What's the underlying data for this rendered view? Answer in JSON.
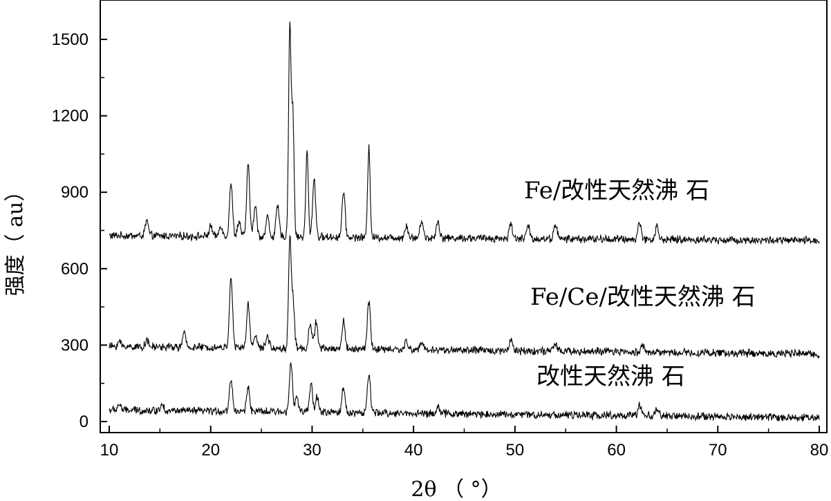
{
  "chart_data": {
    "type": "line",
    "title": "",
    "xlabel": "2θ （ °）",
    "ylabel": "强度（ au）",
    "xlim": [
      10,
      80
    ],
    "ylim": [
      -40,
      1640
    ],
    "x_ticks": [
      "10",
      "20",
      "30",
      "40",
      "50",
      "60",
      "70",
      "80"
    ],
    "y_ticks": [
      "0",
      "300",
      "600",
      "900",
      "1200",
      "1500"
    ],
    "grid": false,
    "legend": "inline labels beside each trace",
    "line_color": "#000000",
    "series": [
      {
        "name": "Fe/改性天然沸 石",
        "baseline": 730,
        "end_level": 710,
        "peaks": [
          [
            13.7,
            60
          ],
          [
            20.0,
            40
          ],
          [
            21.0,
            45
          ],
          [
            22.0,
            210
          ],
          [
            22.8,
            60
          ],
          [
            23.7,
            280
          ],
          [
            24.4,
            120
          ],
          [
            25.6,
            80
          ],
          [
            26.6,
            120
          ],
          [
            27.8,
            830
          ],
          [
            28.1,
            480
          ],
          [
            29.5,
            340
          ],
          [
            30.2,
            230
          ],
          [
            33.1,
            180
          ],
          [
            35.6,
            360
          ],
          [
            39.3,
            50
          ],
          [
            40.8,
            70
          ],
          [
            42.4,
            70
          ],
          [
            49.6,
            60
          ],
          [
            51.3,
            50
          ],
          [
            54.0,
            60
          ],
          [
            62.3,
            70
          ],
          [
            64.0,
            50
          ]
        ]
      },
      {
        "name": "Fe/Ce/改性天然沸 石",
        "baseline": 295,
        "end_level": 265,
        "peaks": [
          [
            11.0,
            20
          ],
          [
            13.7,
            25
          ],
          [
            17.4,
            55
          ],
          [
            22.0,
            280
          ],
          [
            23.7,
            170
          ],
          [
            24.4,
            55
          ],
          [
            25.6,
            50
          ],
          [
            27.8,
            420
          ],
          [
            28.1,
            200
          ],
          [
            29.8,
            100
          ],
          [
            30.4,
            110
          ],
          [
            33.1,
            110
          ],
          [
            35.6,
            190
          ],
          [
            39.3,
            30
          ],
          [
            40.8,
            30
          ],
          [
            49.6,
            50
          ],
          [
            54.0,
            30
          ],
          [
            62.6,
            30
          ]
        ]
      },
      {
        "name": "改性天然沸 石",
        "baseline": 45,
        "end_level": 15,
        "peaks": [
          [
            11.0,
            25
          ],
          [
            15.2,
            30
          ],
          [
            22.0,
            130
          ],
          [
            23.7,
            100
          ],
          [
            27.9,
            200
          ],
          [
            28.5,
            60
          ],
          [
            29.9,
            110
          ],
          [
            30.5,
            60
          ],
          [
            33.1,
            100
          ],
          [
            35.6,
            150
          ],
          [
            42.4,
            30
          ],
          [
            62.3,
            40
          ],
          [
            64.0,
            30
          ]
        ]
      }
    ]
  }
}
